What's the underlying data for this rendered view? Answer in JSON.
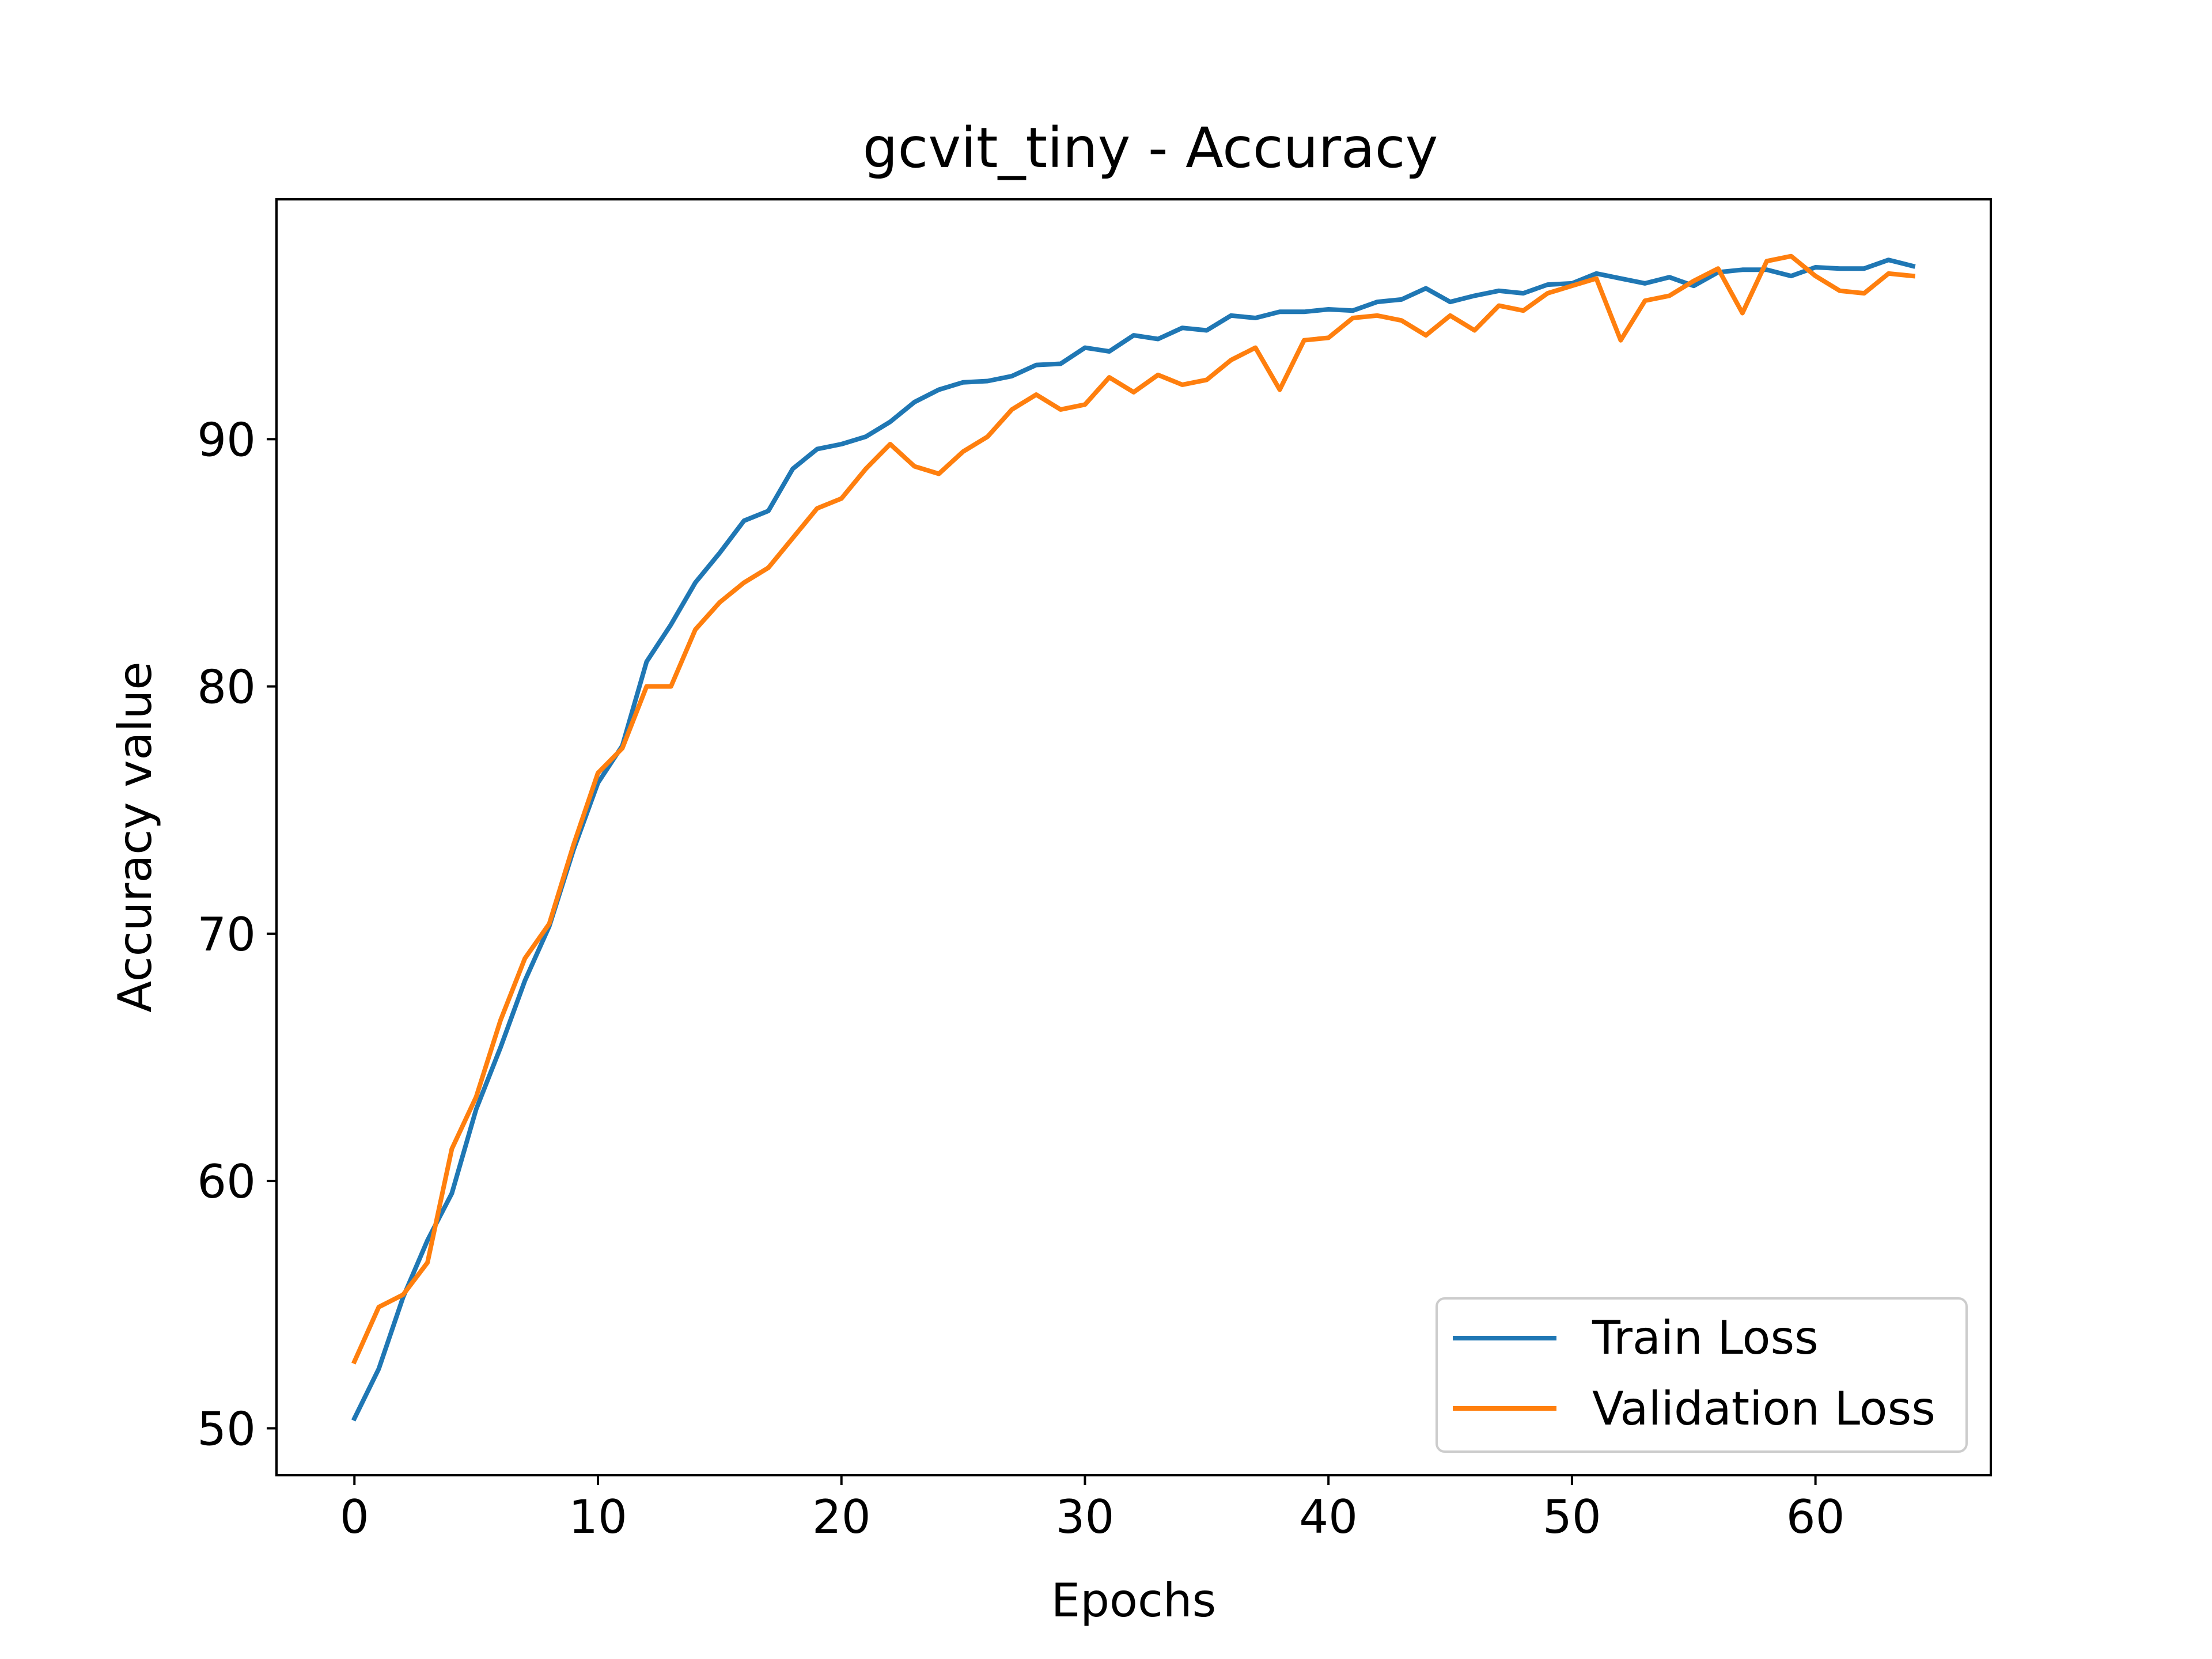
{
  "chart_data": {
    "type": "line",
    "title": "gcvit_tiny - Accuracy",
    "xlabel": "Epochs",
    "ylabel": "Accuracy value",
    "xlim": [
      -3.2,
      67.2
    ],
    "ylim": [
      48.1,
      99.7
    ],
    "xticks": [
      0,
      10,
      20,
      30,
      40,
      50,
      60
    ],
    "yticks": [
      50,
      60,
      70,
      80,
      90
    ],
    "grid": false,
    "legend_position": "lower-right",
    "x": [
      0,
      1,
      2,
      3,
      4,
      5,
      6,
      7,
      8,
      9,
      10,
      11,
      12,
      13,
      14,
      15,
      16,
      17,
      18,
      19,
      20,
      21,
      22,
      23,
      24,
      25,
      26,
      27,
      28,
      29,
      30,
      31,
      32,
      33,
      34,
      35,
      36,
      37,
      38,
      39,
      40,
      41,
      42,
      43,
      44,
      45,
      46,
      47,
      48,
      49,
      50,
      51,
      52,
      53,
      54,
      55,
      56,
      57,
      58,
      59,
      60,
      61,
      62,
      63,
      64
    ],
    "series": [
      {
        "name": "Train Loss",
        "color": "#1f77b4",
        "values": [
          50.4,
          52.4,
          55.3,
          57.6,
          59.5,
          62.9,
          65.4,
          68.1,
          70.3,
          73.4,
          76.1,
          77.6,
          81.0,
          82.5,
          84.2,
          85.4,
          86.7,
          87.1,
          88.8,
          89.6,
          89.8,
          90.1,
          90.7,
          91.5,
          92.0,
          92.3,
          92.35,
          92.55,
          93.0,
          93.05,
          93.7,
          93.55,
          94.2,
          94.05,
          94.5,
          94.4,
          95.0,
          94.9,
          95.15,
          95.15,
          95.25,
          95.2,
          95.55,
          95.65,
          96.1,
          95.55,
          95.8,
          96.0,
          95.9,
          96.25,
          96.3,
          96.7,
          96.5,
          96.3,
          96.55,
          96.2,
          96.75,
          96.85,
          96.85,
          96.6,
          96.95,
          96.9,
          96.9,
          97.25,
          97.0
        ]
      },
      {
        "name": "Validation Loss",
        "color": "#ff7f0e",
        "values": [
          52.7,
          54.9,
          55.4,
          56.7,
          61.3,
          63.4,
          66.5,
          69.0,
          70.4,
          73.6,
          76.5,
          77.5,
          80.0,
          80.0,
          82.3,
          83.4,
          84.2,
          84.8,
          86.0,
          87.2,
          87.6,
          88.8,
          89.8,
          88.9,
          88.6,
          89.5,
          90.1,
          91.2,
          91.8,
          91.2,
          91.4,
          92.5,
          91.9,
          92.6,
          92.2,
          92.4,
          93.2,
          93.7,
          92.0,
          94.0,
          94.1,
          94.9,
          95.0,
          94.8,
          94.2,
          95.0,
          94.4,
          95.4,
          95.2,
          95.9,
          96.2,
          96.5,
          94.0,
          95.6,
          95.8,
          96.4,
          96.9,
          95.1,
          97.2,
          97.4,
          96.6,
          96.0,
          95.9,
          96.7,
          96.6
        ]
      }
    ]
  }
}
